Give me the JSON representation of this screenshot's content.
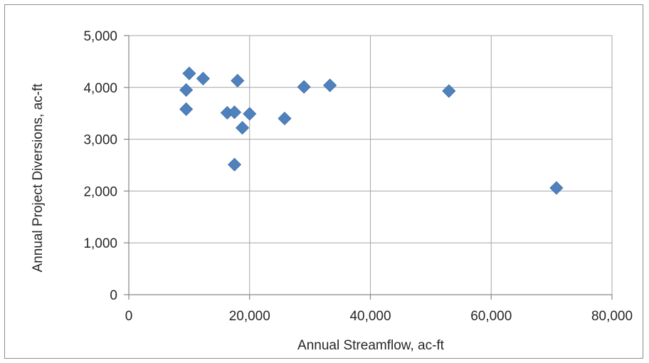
{
  "chart_data": {
    "type": "scatter",
    "xlabel": "Annual Streamflow, ac-ft",
    "ylabel": "Annual Project Diversions, ac-ft",
    "xlim": [
      0,
      80000
    ],
    "ylim": [
      0,
      5000
    ],
    "x_ticks": [
      0,
      20000,
      40000,
      60000,
      80000
    ],
    "y_ticks": [
      0,
      1000,
      2000,
      3000,
      4000,
      5000
    ],
    "x_tick_labels": [
      "0",
      "20,000",
      "40,000",
      "60,000",
      "80,000"
    ],
    "y_tick_labels": [
      "0",
      "1,000",
      "2,000",
      "3,000",
      "4,000",
      "5,000"
    ],
    "grid": true,
    "marker": "diamond",
    "marker_color": "#4f81bd",
    "points": [
      {
        "x": 9500,
        "y": 3950
      },
      {
        "x": 9500,
        "y": 3580
      },
      {
        "x": 10000,
        "y": 4270
      },
      {
        "x": 12300,
        "y": 4170
      },
      {
        "x": 16300,
        "y": 3510
      },
      {
        "x": 17500,
        "y": 3520
      },
      {
        "x": 17500,
        "y": 2510
      },
      {
        "x": 18000,
        "y": 4130
      },
      {
        "x": 18800,
        "y": 3220
      },
      {
        "x": 20000,
        "y": 3490
      },
      {
        "x": 25800,
        "y": 3400
      },
      {
        "x": 29000,
        "y": 4010
      },
      {
        "x": 33300,
        "y": 4040
      },
      {
        "x": 53000,
        "y": 3930
      },
      {
        "x": 70800,
        "y": 2060
      }
    ]
  }
}
